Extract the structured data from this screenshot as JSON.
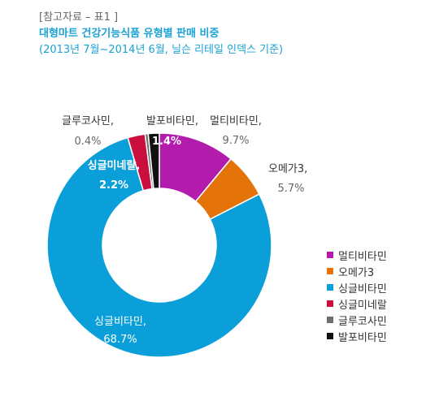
{
  "header": {
    "ref_label": "[참고자료 – 표1 ]",
    "title": "대형마트 건강기능식품 유형별 판매 비중",
    "subtitle": "(2013년 7월~2014년 6월, 닐슨 리테일 인덱스 기준)"
  },
  "chart_data": {
    "type": "pie",
    "variant": "donut",
    "categories": [
      "멀티비타민",
      "오메가3",
      "싱글비타민",
      "싱글미네랄",
      "글루코사민",
      "발포비타민"
    ],
    "values": [
      9.7,
      5.7,
      68.7,
      2.2,
      0.4,
      1.4
    ],
    "value_labels": [
      "9.7%",
      "5.7%",
      "68.7%",
      "2.2%",
      "0.4%",
      "1.4%"
    ],
    "colors": [
      "#b31bac",
      "#e4740a",
      "#0a9fd8",
      "#c80f3e",
      "#6e6e6e",
      "#111111"
    ],
    "legend_position": "right",
    "title": ""
  }
}
